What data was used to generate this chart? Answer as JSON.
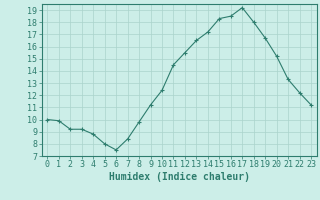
{
  "x": [
    0,
    1,
    2,
    3,
    4,
    5,
    6,
    7,
    8,
    9,
    10,
    11,
    12,
    13,
    14,
    15,
    16,
    17,
    18,
    19,
    20,
    21,
    22,
    23
  ],
  "y": [
    10.0,
    9.9,
    9.2,
    9.2,
    8.8,
    8.0,
    7.5,
    8.4,
    9.8,
    11.2,
    12.4,
    14.5,
    15.5,
    16.5,
    17.2,
    18.3,
    18.5,
    19.2,
    18.0,
    16.7,
    15.2,
    13.3,
    12.2,
    11.2
  ],
  "line_color": "#2e7d6e",
  "marker": "+",
  "marker_size": 3,
  "bg_color": "#cceee8",
  "grid_color": "#aad4cc",
  "xlabel": "Humidex (Indice chaleur)",
  "xlim": [
    -0.5,
    23.5
  ],
  "ylim": [
    7,
    19.5
  ],
  "yticks": [
    7,
    8,
    9,
    10,
    11,
    12,
    13,
    14,
    15,
    16,
    17,
    18,
    19
  ],
  "xticks": [
    0,
    1,
    2,
    3,
    4,
    5,
    6,
    7,
    8,
    9,
    10,
    11,
    12,
    13,
    14,
    15,
    16,
    17,
    18,
    19,
    20,
    21,
    22,
    23
  ],
  "tick_color": "#2e7d6e",
  "label_fontsize": 6,
  "xlabel_fontsize": 7
}
